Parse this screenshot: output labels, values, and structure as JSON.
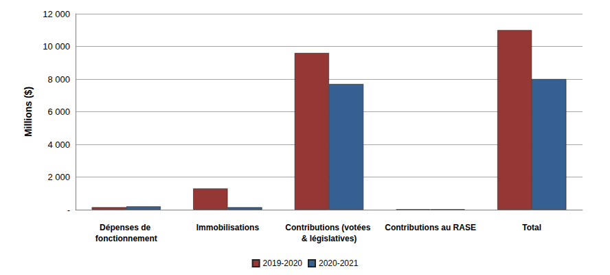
{
  "chart_data": {
    "type": "bar",
    "y_label": "Millions ($)",
    "categories": [
      "Dépenses de fonctionnement",
      "Immobilisations",
      "Contributions (votées & législatives)",
      "Contributions au RASE",
      "Total"
    ],
    "series": [
      {
        "name": "2019-2020",
        "color": "#953735",
        "values": [
          150,
          1300,
          9600,
          20,
          11000
        ]
      },
      {
        "name": "2020-2021",
        "color": "#376092",
        "values": [
          200,
          150,
          7700,
          20,
          8000
        ]
      }
    ],
    "ylim": [
      0,
      12000
    ],
    "yticks": [
      {
        "value": 0,
        "label": "-"
      },
      {
        "value": 2000,
        "label": "2 000"
      },
      {
        "value": 4000,
        "label": "4 000"
      },
      {
        "value": 6000,
        "label": "6 000"
      },
      {
        "value": 8000,
        "label": "8 000"
      },
      {
        "value": 10000,
        "label": "10 000"
      },
      {
        "value": 12000,
        "label": "12 000"
      }
    ],
    "grid": true,
    "legend": "bottom"
  }
}
